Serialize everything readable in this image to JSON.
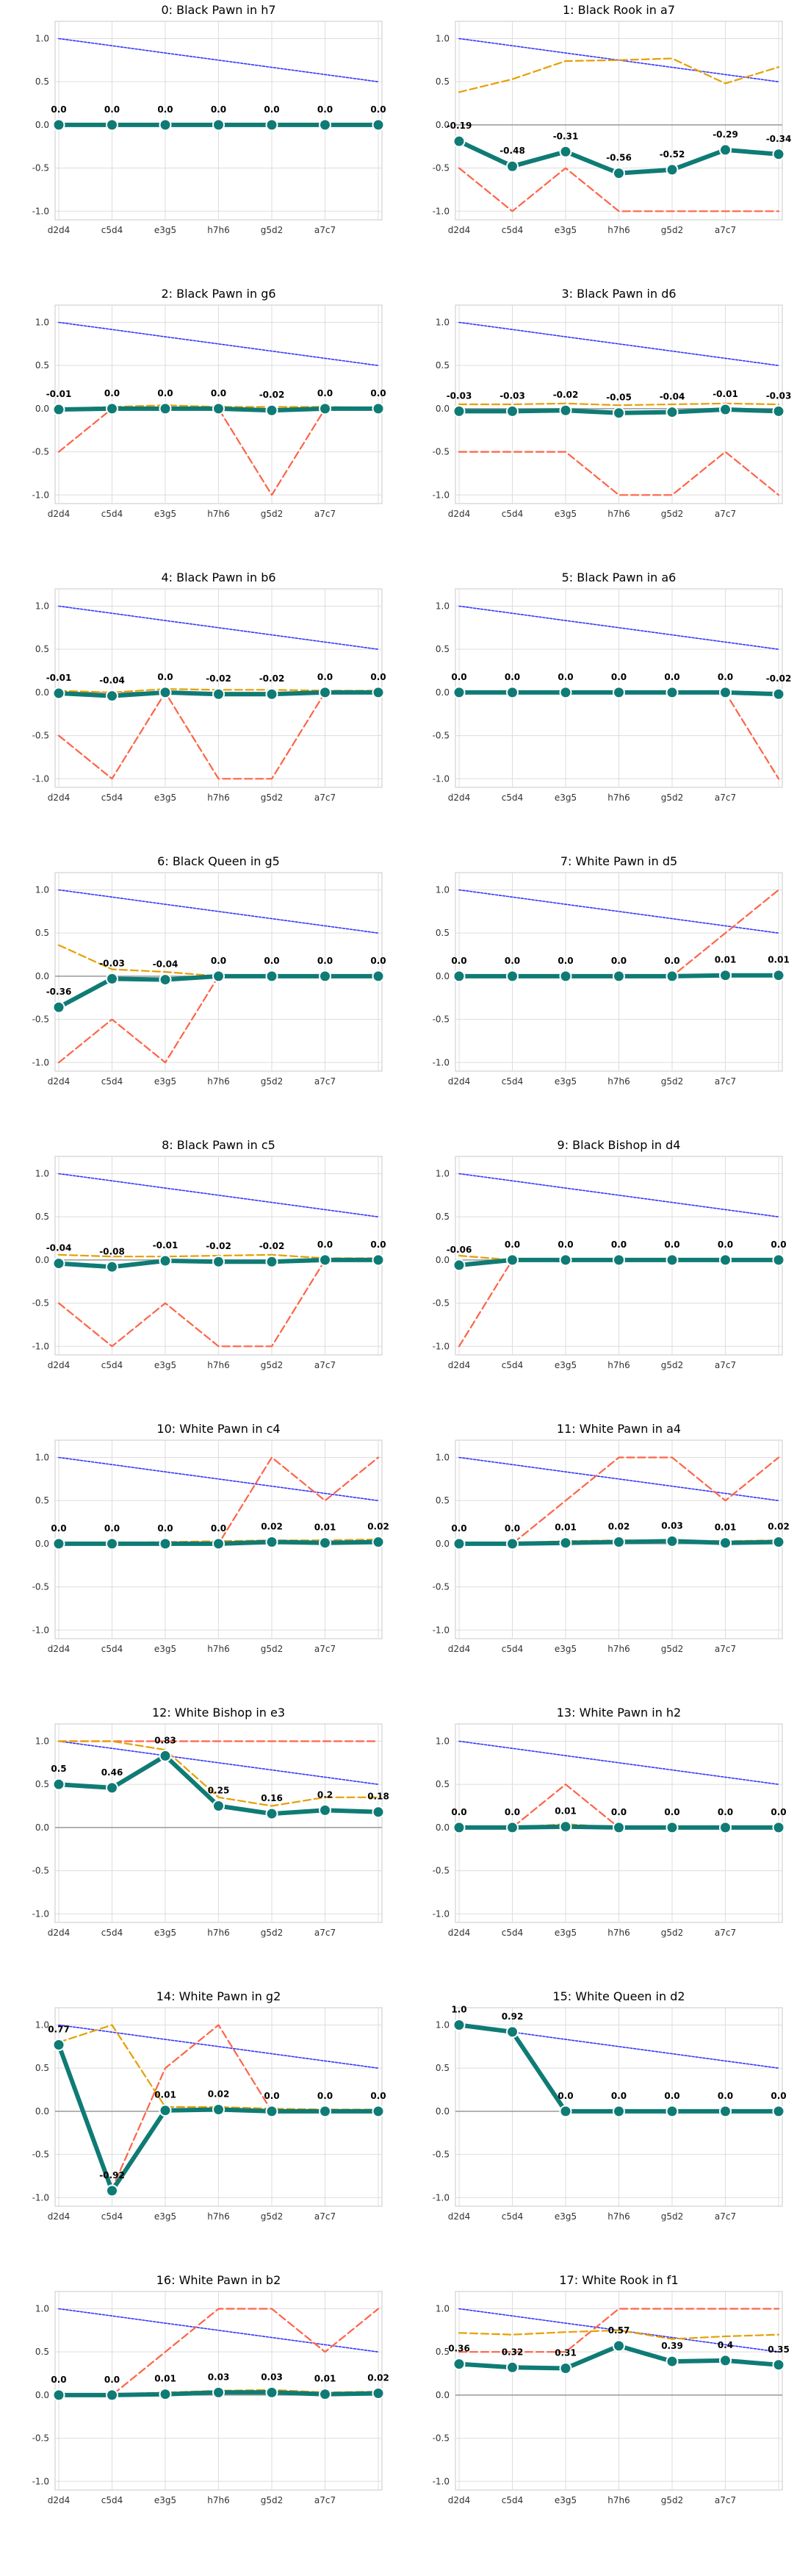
{
  "x_labels": [
    "d2d4",
    "c5d4",
    "e3g5",
    "h7h6",
    "g5d2",
    "a7c7",
    ""
  ],
  "y_ticks": [
    "1.0",
    "0.5",
    "0.0",
    "-0.5",
    "-1.0"
  ],
  "colors": {
    "main": "#0f7b75",
    "orange": "#e69f00",
    "red": "#ff6347",
    "blue": "#3333ff",
    "grid": "#dddddd",
    "zero": "#999999"
  },
  "chart_data": [
    {
      "type": "line",
      "title": "0: Black Pawn in h7",
      "ylim": [
        -1.1,
        1.2
      ],
      "series": [
        {
          "values": [
            0,
            0,
            0,
            0,
            0,
            0,
            0
          ]
        },
        {
          "values": [
            0,
            0,
            0,
            0,
            0,
            0,
            0
          ]
        },
        {
          "values": [
            0,
            0,
            0,
            0,
            0,
            0,
            0
          ]
        },
        {
          "values": [
            1.0,
            0.917,
            0.833,
            0.75,
            0.667,
            0.583,
            0.5
          ]
        }
      ],
      "labels": [
        "0.0",
        "0.0",
        "0.0",
        "0.0",
        "0.0",
        "0.0",
        "0.0"
      ]
    },
    {
      "type": "line",
      "title": "1: Black Rook in a7",
      "ylim": [
        -1.1,
        1.2
      ],
      "series": [
        {
          "values": [
            -0.19,
            -0.48,
            -0.31,
            -0.56,
            -0.52,
            -0.29,
            -0.34
          ]
        },
        {
          "values": [
            0.38,
            0.53,
            0.74,
            0.75,
            0.77,
            0.48,
            0.67
          ]
        },
        {
          "values": [
            -0.5,
            -1.0,
            -0.5,
            -1.0,
            -1.0,
            -1.0,
            -1.0
          ]
        },
        {
          "values": [
            1.0,
            0.917,
            0.833,
            0.75,
            0.667,
            0.583,
            0.5
          ]
        }
      ],
      "labels": [
        "-0.19",
        "-0.48",
        "-0.31",
        "-0.56",
        "-0.52",
        "-0.29",
        "-0.34"
      ]
    },
    {
      "type": "line",
      "title": "2: Black Pawn in g6",
      "ylim": [
        -1.1,
        1.2
      ],
      "series": [
        {
          "values": [
            -0.01,
            0.0,
            0.0,
            0.0,
            -0.02,
            0.0,
            0.0
          ]
        },
        {
          "values": [
            0.0,
            0.02,
            0.04,
            0.02,
            0.02,
            0.02,
            0.01
          ]
        },
        {
          "values": [
            -0.5,
            0.0,
            0.0,
            0.0,
            -1.0,
            0.0,
            0.0
          ]
        },
        {
          "values": [
            1.0,
            0.917,
            0.833,
            0.75,
            0.667,
            0.583,
            0.5
          ]
        }
      ],
      "labels": [
        "-0.01",
        "0.0",
        "0.0",
        "0.0",
        "-0.02",
        "0.0",
        "0.0"
      ]
    },
    {
      "type": "line",
      "title": "3: Black Pawn in d6",
      "ylim": [
        -1.1,
        1.2
      ],
      "series": [
        {
          "values": [
            -0.03,
            -0.03,
            -0.02,
            -0.05,
            -0.04,
            -0.01,
            -0.03
          ]
        },
        {
          "values": [
            0.05,
            0.05,
            0.06,
            0.04,
            0.05,
            0.06,
            0.05
          ]
        },
        {
          "values": [
            -0.5,
            -0.5,
            -0.5,
            -1.0,
            -1.0,
            -0.5,
            -1.0
          ]
        },
        {
          "values": [
            1.0,
            0.917,
            0.833,
            0.75,
            0.667,
            0.583,
            0.5
          ]
        }
      ],
      "labels": [
        "-0.03",
        "-0.03",
        "-0.02",
        "-0.05",
        "-0.04",
        "-0.01",
        "-0.03"
      ]
    },
    {
      "type": "line",
      "title": "4: Black Pawn in b6",
      "ylim": [
        -1.1,
        1.2
      ],
      "series": [
        {
          "values": [
            -0.01,
            -0.04,
            0.0,
            -0.02,
            -0.02,
            0.0,
            0.0
          ]
        },
        {
          "values": [
            0.02,
            0.0,
            0.04,
            0.03,
            0.03,
            0.02,
            0.02
          ]
        },
        {
          "values": [
            -0.5,
            -1.0,
            0.0,
            -1.0,
            -1.0,
            0.0,
            0.0
          ]
        },
        {
          "values": [
            1.0,
            0.917,
            0.833,
            0.75,
            0.667,
            0.583,
            0.5
          ]
        }
      ],
      "labels": [
        "-0.01",
        "-0.04",
        "0.0",
        "-0.02",
        "-0.02",
        "0.0",
        "0.0"
      ]
    },
    {
      "type": "line",
      "title": "5: Black Pawn in a6",
      "ylim": [
        -1.1,
        1.2
      ],
      "series": [
        {
          "values": [
            0,
            0,
            0,
            0,
            0,
            0,
            -0.02
          ]
        },
        {
          "values": [
            0,
            0,
            0,
            0,
            0,
            0,
            0.0
          ]
        },
        {
          "values": [
            0,
            0,
            0,
            0,
            0,
            0,
            -1.0
          ]
        },
        {
          "values": [
            1.0,
            0.917,
            0.833,
            0.75,
            0.667,
            0.583,
            0.5
          ]
        }
      ],
      "labels": [
        "0.0",
        "0.0",
        "0.0",
        "0.0",
        "0.0",
        "0.0",
        "-0.02"
      ]
    },
    {
      "type": "line",
      "title": "6: Black Queen in g5",
      "ylim": [
        -1.1,
        1.2
      ],
      "series": [
        {
          "values": [
            -0.36,
            -0.03,
            -0.04,
            0.0,
            0.0,
            0.0,
            0.0
          ]
        },
        {
          "values": [
            0.36,
            0.08,
            0.05,
            0.0,
            0.0,
            0.0,
            0.0
          ]
        },
        {
          "values": [
            -1.0,
            -0.5,
            -1.0,
            0.0,
            0.0,
            0.0,
            0.0
          ]
        },
        {
          "values": [
            1.0,
            0.917,
            0.833,
            0.75,
            0.667,
            0.583,
            0.5
          ]
        }
      ],
      "labels": [
        "-0.36",
        "-0.03",
        "-0.04",
        "0.0",
        "0.0",
        "0.0",
        "0.0"
      ]
    },
    {
      "type": "line",
      "title": "7: White Pawn in d5",
      "ylim": [
        -1.1,
        1.2
      ],
      "series": [
        {
          "values": [
            0,
            0,
            0,
            0,
            0,
            0.01,
            0.01
          ]
        },
        {
          "values": [
            0,
            0,
            0,
            0,
            0,
            0.02,
            0.02
          ]
        },
        {
          "values": [
            0,
            0,
            0,
            0,
            0,
            0.5,
            1.0
          ]
        },
        {
          "values": [
            1.0,
            0.917,
            0.833,
            0.75,
            0.667,
            0.583,
            0.5
          ]
        }
      ],
      "labels": [
        "0.0",
        "0.0",
        "0.0",
        "0.0",
        "0.0",
        "0.01",
        "0.01"
      ]
    },
    {
      "type": "line",
      "title": "8: Black Pawn in c5",
      "ylim": [
        -1.1,
        1.2
      ],
      "series": [
        {
          "values": [
            -0.04,
            -0.08,
            -0.01,
            -0.02,
            -0.02,
            0.0,
            0.0
          ]
        },
        {
          "values": [
            0.06,
            0.04,
            0.04,
            0.05,
            0.06,
            0.02,
            0.02
          ]
        },
        {
          "values": [
            -0.5,
            -1.0,
            -0.5,
            -1.0,
            -1.0,
            0.0,
            0.0
          ]
        },
        {
          "values": [
            1.0,
            0.917,
            0.833,
            0.75,
            0.667,
            0.583,
            0.5
          ]
        }
      ],
      "labels": [
        "-0.04",
        "-0.08",
        "-0.01",
        "-0.02",
        "-0.02",
        "0.0",
        "0.0"
      ]
    },
    {
      "type": "line",
      "title": "9: Black Bishop in d4",
      "ylim": [
        -1.1,
        1.2
      ],
      "series": [
        {
          "values": [
            -0.06,
            0,
            0,
            0,
            0,
            0,
            0
          ]
        },
        {
          "values": [
            0.05,
            0,
            0,
            0,
            0,
            0,
            0
          ]
        },
        {
          "values": [
            -1.0,
            0,
            0,
            0,
            0,
            0,
            0
          ]
        },
        {
          "values": [
            1.0,
            0.917,
            0.833,
            0.75,
            0.667,
            0.583,
            0.5
          ]
        }
      ],
      "labels": [
        "-0.06",
        "0.0",
        "0.0",
        "0.0",
        "0.0",
        "0.0",
        "0.0"
      ]
    },
    {
      "type": "line",
      "title": "10: White Pawn in c4",
      "ylim": [
        -1.1,
        1.2
      ],
      "series": [
        {
          "values": [
            0,
            0,
            0,
            0,
            0.02,
            0.01,
            0.02
          ]
        },
        {
          "values": [
            0.01,
            0.01,
            0.02,
            0.03,
            0.04,
            0.04,
            0.05
          ]
        },
        {
          "values": [
            0,
            0,
            0,
            0,
            1.0,
            0.5,
            1.0
          ]
        },
        {
          "values": [
            1.0,
            0.917,
            0.833,
            0.75,
            0.667,
            0.583,
            0.5
          ]
        }
      ],
      "labels": [
        "0.0",
        "0.0",
        "0.0",
        "0.0",
        "0.02",
        "0.01",
        "0.02"
      ]
    },
    {
      "type": "line",
      "title": "11: White Pawn in a4",
      "ylim": [
        -1.1,
        1.2
      ],
      "series": [
        {
          "values": [
            0,
            0,
            0.01,
            0.02,
            0.03,
            0.01,
            0.02
          ]
        },
        {
          "values": [
            0.01,
            0.01,
            0.03,
            0.04,
            0.04,
            0.03,
            0.04
          ]
        },
        {
          "values": [
            0,
            0,
            0.5,
            1.0,
            1.0,
            0.5,
            1.0
          ]
        },
        {
          "values": [
            1.0,
            0.917,
            0.833,
            0.75,
            0.667,
            0.583,
            0.5
          ]
        }
      ],
      "labels": [
        "0.0",
        "0.0",
        "0.01",
        "0.02",
        "0.03",
        "0.01",
        "0.02"
      ]
    },
    {
      "type": "line",
      "title": "12: White Bishop in e3",
      "ylim": [
        -1.1,
        1.2
      ],
      "series": [
        {
          "values": [
            0.5,
            0.46,
            0.83,
            0.25,
            0.16,
            0.2,
            0.18
          ]
        },
        {
          "values": [
            1.0,
            1.0,
            0.9,
            0.35,
            0.25,
            0.35,
            0.35
          ]
        },
        {
          "values": [
            1.0,
            1.0,
            1.0,
            1.0,
            1.0,
            1.0,
            1.0
          ]
        },
        {
          "values": [
            1.0,
            0.917,
            0.833,
            0.75,
            0.667,
            0.583,
            0.5
          ]
        }
      ],
      "labels": [
        "0.5",
        "0.46",
        "0.83",
        "0.25",
        "0.16",
        "0.2",
        "0.18"
      ]
    },
    {
      "type": "line",
      "title": "13: White Pawn in h2",
      "ylim": [
        -1.1,
        1.2
      ],
      "series": [
        {
          "values": [
            0,
            0,
            0.01,
            0,
            0,
            0,
            0
          ]
        },
        {
          "values": [
            0.0,
            0.0,
            0.04,
            0.0,
            0.0,
            0.0,
            0.0
          ]
        },
        {
          "values": [
            0,
            0,
            0.5,
            0,
            0,
            0,
            0
          ]
        },
        {
          "values": [
            1.0,
            0.917,
            0.833,
            0.75,
            0.667,
            0.583,
            0.5
          ]
        }
      ],
      "labels": [
        "0.0",
        "0.0",
        "0.01",
        "0.0",
        "0.0",
        "0.0",
        "0.0"
      ]
    },
    {
      "type": "line",
      "title": "14: White Pawn in g2",
      "ylim": [
        -1.1,
        1.2
      ],
      "series": [
        {
          "values": [
            0.77,
            -0.92,
            0.01,
            0.02,
            0.0,
            0.0,
            0.0
          ]
        },
        {
          "values": [
            0.8,
            1.0,
            0.05,
            0.05,
            0.03,
            0.02,
            0.02
          ]
        },
        {
          "values": [
            0.8,
            -0.9,
            0.5,
            1.0,
            0.0,
            0.0,
            0.0
          ]
        },
        {
          "values": [
            1.0,
            0.917,
            0.833,
            0.75,
            0.667,
            0.583,
            0.5
          ]
        }
      ],
      "labels": [
        "0.77",
        "-0.92",
        "0.01",
        "0.02",
        "0.0",
        "0.0",
        "0.0"
      ]
    },
    {
      "type": "line",
      "title": "15: White Queen in d2",
      "ylim": [
        -1.1,
        1.2
      ],
      "series": [
        {
          "values": [
            1.0,
            0.92,
            0.0,
            0.0,
            0.0,
            0.0,
            0.0
          ]
        },
        {
          "values": [
            1.0,
            0.92,
            0.0,
            0.0,
            0.0,
            0.0,
            0.0
          ]
        },
        {
          "values": [
            1.0,
            0.92,
            0.0,
            0.0,
            0.0,
            0.0,
            0.0
          ]
        },
        {
          "values": [
            1.0,
            0.917,
            0.833,
            0.75,
            0.667,
            0.583,
            0.5
          ]
        }
      ],
      "labels": [
        "1.0",
        "0.92",
        "0.0",
        "0.0",
        "0.0",
        "0.0",
        "0.0"
      ]
    },
    {
      "type": "line",
      "title": "16: White Pawn in b2",
      "ylim": [
        -1.1,
        1.2
      ],
      "series": [
        {
          "values": [
            0,
            0,
            0.01,
            0.03,
            0.03,
            0.01,
            0.02
          ]
        },
        {
          "values": [
            0.01,
            0.01,
            0.03,
            0.05,
            0.06,
            0.03,
            0.04
          ]
        },
        {
          "values": [
            0,
            0,
            0.5,
            1.0,
            1.0,
            0.5,
            1.0
          ]
        },
        {
          "values": [
            1.0,
            0.917,
            0.833,
            0.75,
            0.667,
            0.583,
            0.5
          ]
        }
      ],
      "labels": [
        "0.0",
        "0.0",
        "0.01",
        "0.03",
        "0.03",
        "0.01",
        "0.02"
      ]
    },
    {
      "type": "line",
      "title": "17: White Rook in f1",
      "ylim": [
        -1.1,
        1.2
      ],
      "series": [
        {
          "values": [
            0.36,
            0.32,
            0.31,
            0.57,
            0.39,
            0.4,
            0.35
          ]
        },
        {
          "values": [
            0.72,
            0.7,
            0.73,
            0.75,
            0.65,
            0.68,
            0.7
          ]
        },
        {
          "values": [
            0.5,
            0.5,
            0.5,
            1.0,
            1.0,
            1.0,
            1.0
          ]
        },
        {
          "values": [
            1.0,
            0.917,
            0.833,
            0.75,
            0.667,
            0.583,
            0.5
          ]
        }
      ],
      "labels": [
        "0.36",
        "0.32",
        "0.31",
        "0.57",
        "0.39",
        "0.4",
        "0.35"
      ]
    }
  ]
}
